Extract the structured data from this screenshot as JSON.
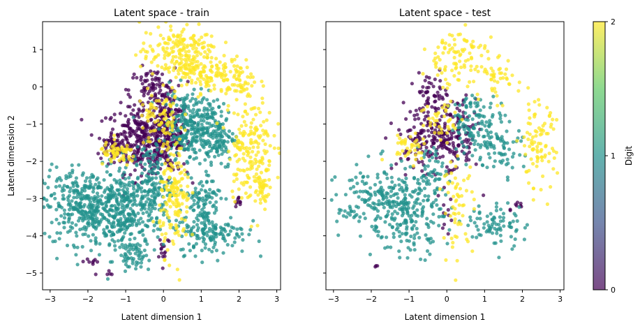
{
  "chart_data": [
    {
      "type": "scatter",
      "title": "Latent space - train",
      "xlabel": "Latent dimension 1",
      "ylabel": "Latent dimension 2",
      "xlim": [
        -3.2,
        3.1
      ],
      "ylim": [
        -5.45,
        1.75
      ],
      "xticks": [
        "−3",
        "−2",
        "−1",
        "0",
        "1",
        "2",
        "3"
      ],
      "yticks": [
        "−5",
        "−4",
        "−3",
        "−2",
        "−1",
        "0",
        "1"
      ],
      "grid": false,
      "series": [
        {
          "digit": 0,
          "color": "#440154",
          "clusters": [
            {
              "cx": -0.6,
              "cy": -1.4,
              "sx": 0.45,
              "sy": 0.45,
              "n": 300
            },
            {
              "cx": 0.1,
              "cy": -1.3,
              "sx": 0.3,
              "sy": 0.5,
              "n": 220
            },
            {
              "cx": -0.3,
              "cy": -0.1,
              "sx": 0.3,
              "sy": 0.3,
              "n": 90
            },
            {
              "cx": -1.3,
              "cy": -1.6,
              "sx": 0.25,
              "sy": 0.2,
              "n": 40
            },
            {
              "cx": 0.0,
              "cy": -4.3,
              "sx": 0.1,
              "sy": 0.2,
              "n": 15
            },
            {
              "cx": 2.0,
              "cy": -3.1,
              "sx": 0.07,
              "sy": 0.07,
              "n": 10
            },
            {
              "cx": -1.9,
              "cy": -4.7,
              "sx": 0.12,
              "sy": 0.1,
              "n": 8
            },
            {
              "cx": -1.5,
              "cy": -5.05,
              "sx": 0.1,
              "sy": 0.06,
              "n": 5
            }
          ]
        },
        {
          "digit": 1,
          "color": "#21918c",
          "clusters": [
            {
              "cx": -2.0,
              "cy": -3.2,
              "sx": 0.6,
              "sy": 0.5,
              "n": 420
            },
            {
              "cx": -0.9,
              "cy": -3.4,
              "sx": 0.45,
              "sy": 0.6,
              "n": 250
            },
            {
              "cx": 0.6,
              "cy": -1.0,
              "sx": 0.3,
              "sy": 0.45,
              "n": 200
            },
            {
              "cx": 1.3,
              "cy": -1.3,
              "sx": 0.3,
              "sy": 0.45,
              "n": 180
            },
            {
              "cx": 1.3,
              "cy": -3.9,
              "sx": 0.45,
              "sy": 0.3,
              "n": 150
            },
            {
              "cx": 1.0,
              "cy": -3.0,
              "sx": 0.25,
              "sy": 0.3,
              "n": 80
            },
            {
              "cx": -0.8,
              "cy": -4.5,
              "sx": 0.2,
              "sy": 0.15,
              "n": 50
            },
            {
              "cx": -0.3,
              "cy": -2.6,
              "sx": 0.25,
              "sy": 0.5,
              "n": 120
            }
          ]
        },
        {
          "digit": 2,
          "color": "#fde725",
          "clusters": [
            {
              "cx": 0.4,
              "cy": 0.9,
              "sx": 0.5,
              "sy": 0.4,
              "n": 200
            },
            {
              "cx": 1.1,
              "cy": 0.4,
              "sx": 0.35,
              "sy": 0.3,
              "n": 100
            },
            {
              "cx": 2.3,
              "cy": -1.6,
              "sx": 0.3,
              "sy": 0.7,
              "n": 180
            },
            {
              "cx": 2.0,
              "cy": 0.2,
              "sx": 0.25,
              "sy": 0.3,
              "n": 60
            },
            {
              "cx": 0.3,
              "cy": -3.0,
              "sx": 0.2,
              "sy": 0.7,
              "n": 160
            },
            {
              "cx": -1.2,
              "cy": -1.8,
              "sx": 0.25,
              "sy": 0.15,
              "n": 60
            },
            {
              "cx": -0.1,
              "cy": -0.9,
              "sx": 0.3,
              "sy": 0.4,
              "n": 80
            },
            {
              "cx": 2.6,
              "cy": -2.6,
              "sx": 0.12,
              "sy": 0.3,
              "n": 40
            }
          ]
        }
      ]
    },
    {
      "type": "scatter",
      "title": "Latent space - test",
      "xlabel": "Latent dimension 1",
      "ylabel": "",
      "xlim": [
        -3.2,
        3.1
      ],
      "ylim": [
        -5.45,
        1.75
      ],
      "xticks": [
        "−3",
        "−2",
        "−1",
        "0",
        "1",
        "2",
        "3"
      ],
      "yticks": [],
      "grid": false,
      "series": [
        {
          "digit": 0,
          "color": "#440154",
          "clusters": [
            {
              "cx": -0.5,
              "cy": -1.3,
              "sx": 0.4,
              "sy": 0.45,
              "n": 160
            },
            {
              "cx": 0.2,
              "cy": -1.4,
              "sx": 0.3,
              "sy": 0.5,
              "n": 110
            },
            {
              "cx": -0.3,
              "cy": -0.1,
              "sx": 0.25,
              "sy": 0.25,
              "n": 40
            },
            {
              "cx": 0.0,
              "cy": -3.4,
              "sx": 0.1,
              "sy": 0.3,
              "n": 12
            },
            {
              "cx": 1.9,
              "cy": -3.2,
              "sx": 0.08,
              "sy": 0.1,
              "n": 8
            },
            {
              "cx": -1.9,
              "cy": -4.8,
              "sx": 0.06,
              "sy": 0.05,
              "n": 3
            }
          ]
        },
        {
          "digit": 1,
          "color": "#21918c",
          "clusters": [
            {
              "cx": -1.8,
              "cy": -3.1,
              "sx": 0.55,
              "sy": 0.5,
              "n": 200
            },
            {
              "cx": -0.9,
              "cy": -3.5,
              "sx": 0.4,
              "sy": 0.5,
              "n": 130
            },
            {
              "cx": 0.7,
              "cy": -1.0,
              "sx": 0.3,
              "sy": 0.4,
              "n": 100
            },
            {
              "cx": 1.4,
              "cy": -1.5,
              "sx": 0.3,
              "sy": 0.4,
              "n": 80
            },
            {
              "cx": 1.3,
              "cy": -3.7,
              "sx": 0.4,
              "sy": 0.3,
              "n": 80
            },
            {
              "cx": -0.4,
              "cy": -2.4,
              "sx": 0.2,
              "sy": 0.5,
              "n": 60
            }
          ]
        },
        {
          "digit": 2,
          "color": "#fde725",
          "clusters": [
            {
              "cx": 0.2,
              "cy": 0.8,
              "sx": 0.4,
              "sy": 0.4,
              "n": 90
            },
            {
              "cx": 1.2,
              "cy": 0.2,
              "sx": 0.35,
              "sy": 0.3,
              "n": 50
            },
            {
              "cx": 2.4,
              "cy": -1.6,
              "sx": 0.25,
              "sy": 0.6,
              "n": 90
            },
            {
              "cx": 0.3,
              "cy": -3.2,
              "sx": 0.2,
              "sy": 0.6,
              "n": 60
            },
            {
              "cx": -1.0,
              "cy": -1.6,
              "sx": 0.3,
              "sy": 0.2,
              "n": 40
            },
            {
              "cx": -0.1,
              "cy": -0.9,
              "sx": 0.3,
              "sy": 0.3,
              "n": 40
            }
          ]
        }
      ]
    }
  ],
  "colorbar": {
    "label": "Digit",
    "ticks": [
      "0",
      "1",
      "2"
    ],
    "range": [
      0,
      2
    ],
    "colormap": [
      "#440154",
      "#3b528b",
      "#21918c",
      "#5ec962",
      "#fde725"
    ],
    "alpha": 0.7
  }
}
